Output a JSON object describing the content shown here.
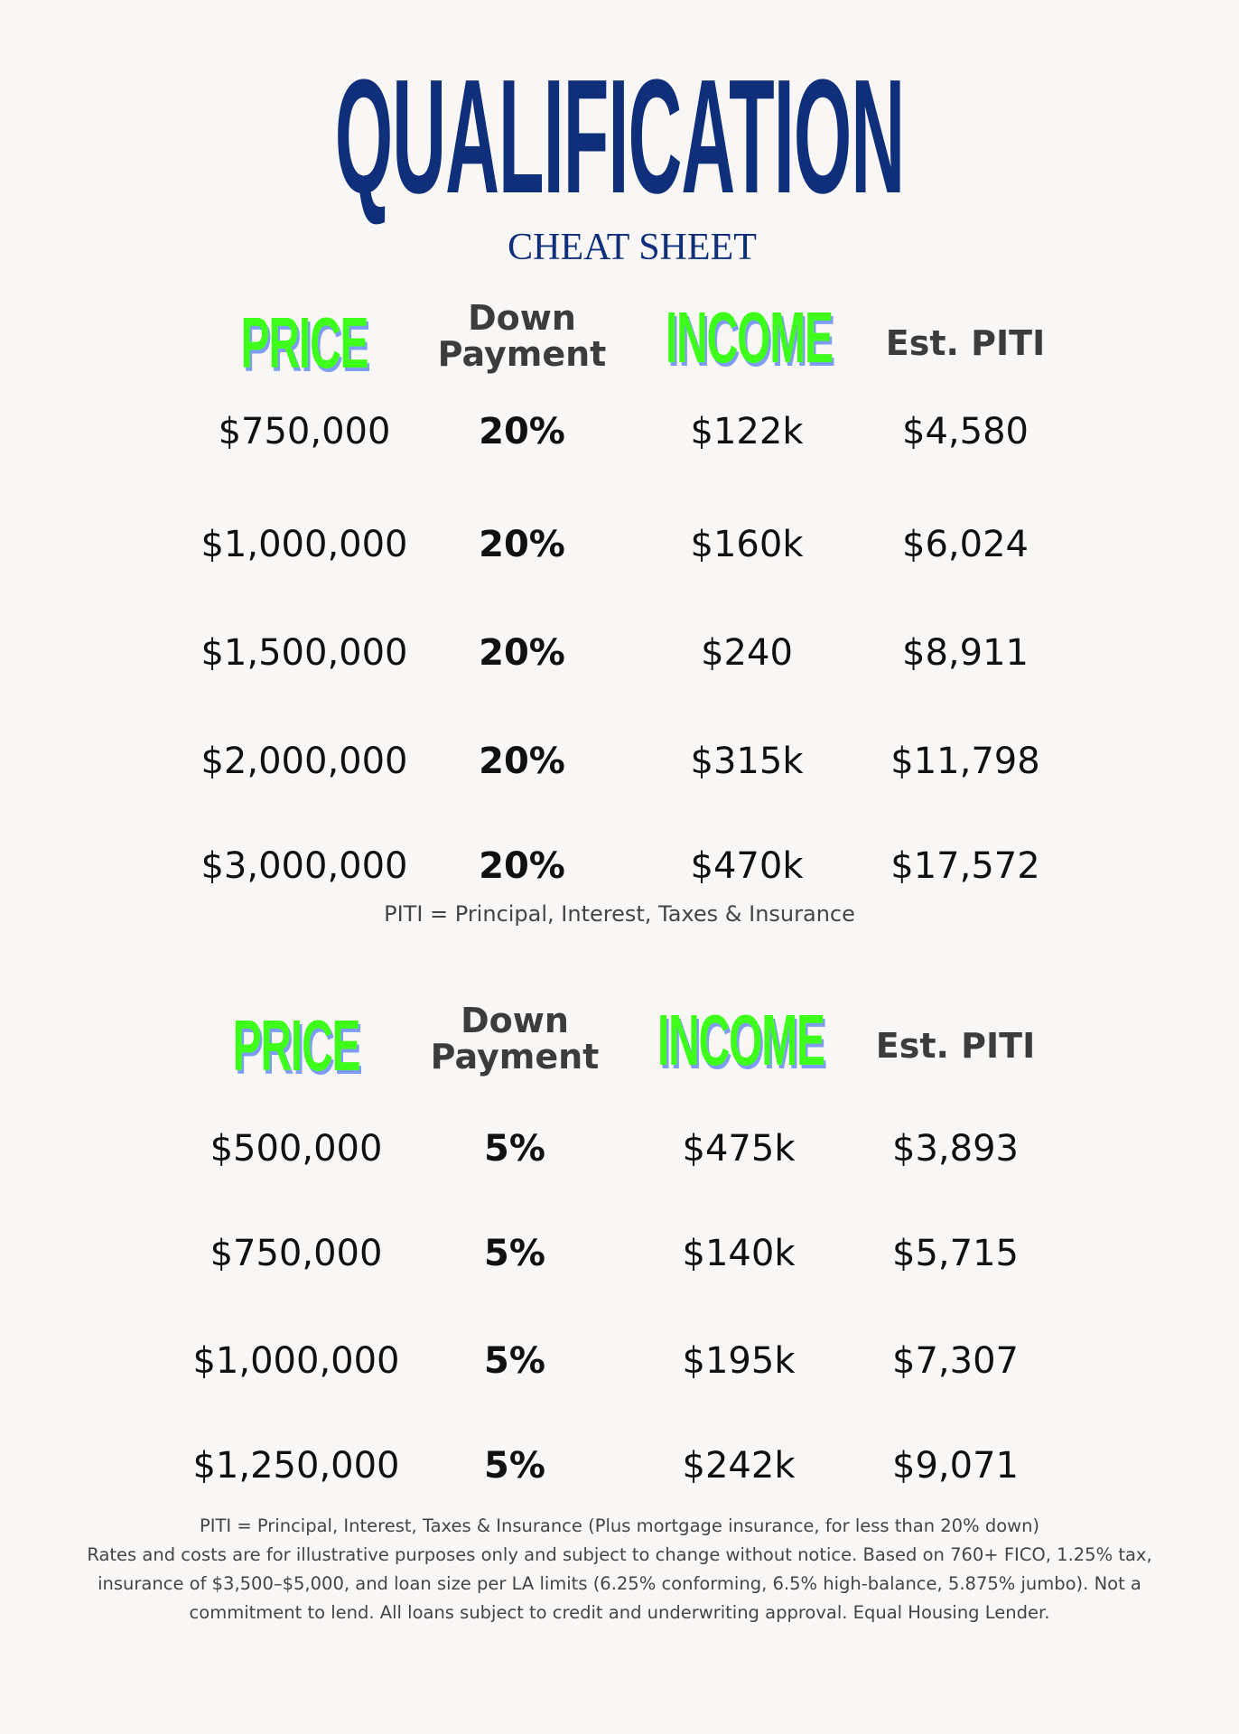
{
  "title": "QUALIFICATION",
  "subtitle": "CHEAT SHEET",
  "colors": {
    "title": "#0f2f7a",
    "header_green": "#3dff1a",
    "header_shadow": "#7f9cf5",
    "text": "#111111"
  },
  "tables": [
    {
      "headers": {
        "price": "PRICE",
        "down_line1": "Down",
        "down_line2": "Payment",
        "income": "INCOME",
        "piti": "Est. PITI"
      },
      "rows": [
        {
          "price": "$750,000",
          "down": "20%",
          "income": "$122k",
          "piti": "$4,580"
        },
        {
          "price": "$1,000,000",
          "down": "20%",
          "income": "$160k",
          "piti": "$6,024"
        },
        {
          "price": "$1,500,000",
          "down": "20%",
          "income": "$240",
          "piti": "$8,911"
        },
        {
          "price": "$2,000,000",
          "down": "20%",
          "income": "$315k",
          "piti": "$11,798"
        },
        {
          "price": "$3,000,000",
          "down": "20%",
          "income": "$470k",
          "piti": "$17,572"
        }
      ],
      "note": "PITI = Principal, Interest, Taxes & Insurance"
    },
    {
      "headers": {
        "price": "PRICE",
        "down_line1": "Down",
        "down_line2": "Payment",
        "income": "INCOME",
        "piti": "Est. PITI"
      },
      "rows": [
        {
          "price": "$500,000",
          "down": "5%",
          "income": "$475k",
          "piti": "$3,893"
        },
        {
          "price": "$750,000",
          "down": "5%",
          "income": "$140k",
          "piti": "$5,715"
        },
        {
          "price": "$1,000,000",
          "down": "5%",
          "income": "$195k",
          "piti": "$7,307"
        },
        {
          "price": "$1,250,000",
          "down": "5%",
          "income": "$242k",
          "piti": "$9,071"
        }
      ]
    }
  ],
  "footer": {
    "line1": "PITI = Principal, Interest, Taxes & Insurance (Plus mortgage insurance, for less than 20% down)",
    "disclaimer": "Rates and costs are for illustrative purposes only and subject to change without notice. Based on 760+ FICO, 1.25% tax, insurance of $3,500–$5,000, and loan size per LA limits (6.25% conforming, 6.5% high-balance, 5.875% jumbo). Not a commitment to lend. All loans subject to credit and underwriting approval. Equal Housing Lender."
  }
}
